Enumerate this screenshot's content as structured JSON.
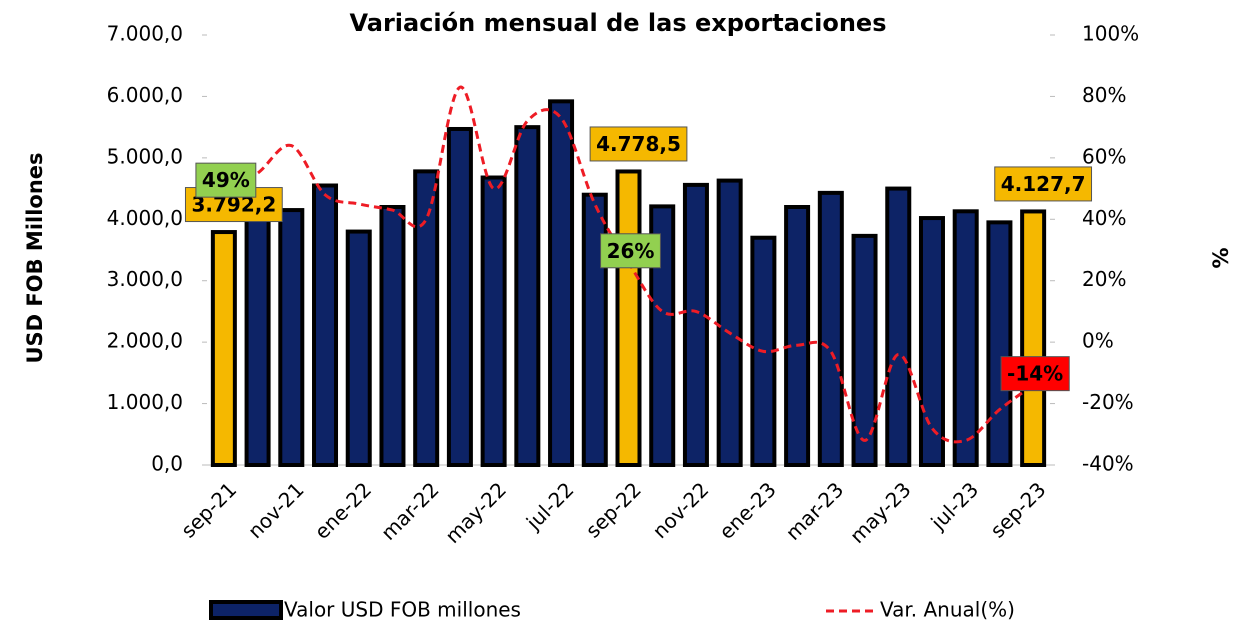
{
  "chart_data": {
    "type": "bar-line",
    "title": "Variación mensual de las exportaciones",
    "y_label": "USD FOB Millones",
    "y2_label": "%",
    "categories": [
      "sep-21",
      null,
      "nov-21",
      null,
      "ene-22",
      null,
      "mar-22",
      null,
      "may-22",
      null,
      "jul-22",
      null,
      "sep-22",
      null,
      "nov-22",
      null,
      "ene-23",
      null,
      "mar-23",
      null,
      "may-23",
      null,
      "jul-23",
      null,
      "sep-23"
    ],
    "series": [
      {
        "name": "Valor USD FOB millones",
        "type": "bar",
        "color": "#0d2366",
        "highlight_color": "#f5b800",
        "highlight": [
          0,
          12,
          24
        ],
        "values": [
          3792.2,
          4100,
          4150,
          4550,
          3800,
          4200,
          4780,
          5470,
          4680,
          5500,
          5920,
          4400,
          4778.5,
          4210,
          4560,
          4630,
          3700,
          4200,
          4430,
          3730,
          4500,
          4020,
          4130,
          3950,
          4127.7
        ],
        "value_labels": [
          "3.792,2",
          null,
          null,
          null,
          null,
          null,
          null,
          null,
          null,
          null,
          null,
          null,
          "4.778,5",
          null,
          null,
          null,
          null,
          null,
          null,
          null,
          null,
          null,
          null,
          null,
          "4.127,7"
        ]
      },
      {
        "name": "Var. Anual(%)",
        "type": "line",
        "axis": "y2",
        "color": "#ee1c25",
        "dashed": true,
        "values": [
          49,
          55,
          64,
          48,
          45,
          43,
          40,
          83,
          50,
          72,
          73,
          45,
          26,
          10,
          10,
          3,
          -3,
          -1,
          -3,
          -32,
          -4,
          -28,
          -32,
          -22,
          -14
        ],
        "value_labels": [
          "49%",
          null,
          null,
          null,
          null,
          null,
          null,
          null,
          null,
          null,
          null,
          null,
          "26%",
          null,
          null,
          null,
          null,
          null,
          null,
          null,
          null,
          null,
          null,
          null,
          "-14%"
        ]
      }
    ],
    "ylim": [
      0,
      7000
    ],
    "yticks": [
      {
        "value": 0,
        "label": "0,0"
      },
      {
        "value": 1000,
        "label": "1.000,0"
      },
      {
        "value": 2000,
        "label": "2.000,0"
      },
      {
        "value": 3000,
        "label": "3.000,0"
      },
      {
        "value": 4000,
        "label": "4.000,0"
      },
      {
        "value": 5000,
        "label": "5.000,0"
      },
      {
        "value": 6000,
        "label": "6.000,0"
      },
      {
        "value": 7000,
        "label": "7.000,0"
      }
    ],
    "y2lim": [
      -40,
      100
    ],
    "y2ticks": [
      {
        "value": -40,
        "label": "-40%"
      },
      {
        "value": -20,
        "label": "-20%"
      },
      {
        "value": 0,
        "label": "0%"
      },
      {
        "value": 20,
        "label": "20%"
      },
      {
        "value": 40,
        "label": "40%"
      },
      {
        "value": 60,
        "label": "60%"
      },
      {
        "value": 80,
        "label": "80%"
      },
      {
        "value": 100,
        "label": "100%"
      }
    ],
    "grid": false,
    "legend": "bottom"
  }
}
